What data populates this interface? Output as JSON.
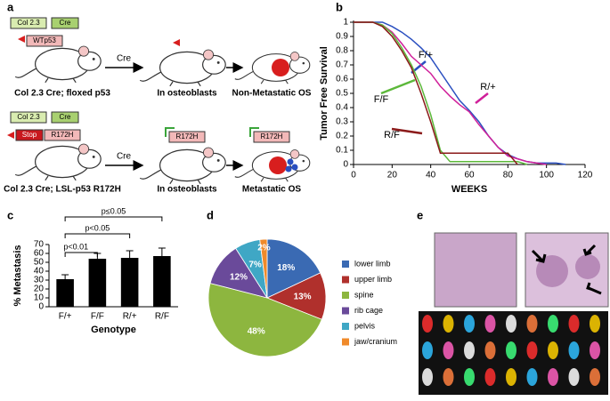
{
  "diagram": {
    "panel": "a",
    "rows": [
      {
        "genes": [
          "Col 2.3",
          "Cre",
          "WTp53"
        ],
        "cre": "Cre",
        "labels": [
          "Col 2.3 Cre; floxed p53",
          "In osteoblasts",
          "Non-Metastatic OS"
        ]
      },
      {
        "genes": [
          "Col 2.3",
          "Cre",
          "Stop",
          "R172H"
        ],
        "cre": "Cre",
        "middle": "R172H",
        "right": "R172H",
        "labels": [
          "Col 2.3 Cre; LSL-p53 R172H",
          "In osteoblasts",
          "Metastatic OS"
        ]
      }
    ]
  },
  "chart_data": [
    {
      "type": "line",
      "panel": "b",
      "y_label": "Tumor Free Survival",
      "x_label": "WEEKS",
      "x": [
        0,
        10,
        15,
        20,
        25,
        30,
        35,
        40,
        45,
        50,
        55,
        60,
        65,
        70,
        75,
        80,
        85,
        90,
        95,
        100,
        105,
        110
      ],
      "series": [
        {
          "name": "F/+",
          "color": "#2a4fc0",
          "values": [
            1,
            1,
            1,
            0.97,
            0.93,
            0.88,
            0.82,
            0.75,
            0.65,
            0.55,
            0.45,
            0.38,
            0.3,
            0.2,
            0.12,
            0.07,
            0.04,
            0.02,
            0.01,
            0.01,
            0.01,
            0
          ]
        },
        {
          "name": "R/+",
          "color": "#d0209a",
          "values": [
            1,
            1,
            0.98,
            0.93,
            0.85,
            0.76,
            0.7,
            0.64,
            0.55,
            0.48,
            0.42,
            0.37,
            0.28,
            0.2,
            0.12,
            0.06,
            0.04,
            0.02,
            0.01,
            0,
            null,
            null
          ]
        },
        {
          "name": "F/F",
          "color": "#5cb83a",
          "values": [
            1,
            1,
            0.98,
            0.92,
            0.82,
            0.7,
            0.55,
            0.35,
            0.1,
            0.02,
            0.02,
            0.02,
            0.02,
            0.02,
            0.02,
            0.02,
            0.02,
            0,
            null,
            null,
            null,
            null
          ]
        },
        {
          "name": "R/F",
          "color": "#8b1a1a",
          "values": [
            1,
            1,
            0.97,
            0.9,
            0.8,
            0.68,
            0.5,
            0.3,
            0.08,
            0.08,
            0.08,
            0.08,
            0.08,
            0.08,
            0.08,
            0.08,
            0,
            null,
            null,
            null,
            null,
            null
          ]
        }
      ],
      "xlim": [
        0,
        120
      ],
      "xticks": [
        0,
        20,
        40,
        60,
        80,
        100,
        120
      ],
      "ylim": [
        0,
        1
      ],
      "yticks": [
        0,
        0.1,
        0.2,
        0.3,
        0.4,
        0.5,
        0.6,
        0.7,
        0.8,
        0.9,
        1
      ]
    },
    {
      "type": "bar",
      "panel": "c",
      "y_label": "% Metastasis",
      "x_label": "Genotype",
      "categories": [
        "F/+",
        "F/F",
        "R/+",
        "R/F"
      ],
      "values": [
        31,
        54,
        55,
        57
      ],
      "errors": [
        5,
        6,
        8,
        9
      ],
      "color": "#000000",
      "ylim": [
        0,
        70
      ],
      "yticks": [
        0,
        10,
        20,
        30,
        40,
        50,
        60,
        70
      ],
      "annotations": [
        "p≤0.05",
        "p<0.05",
        "p<0.01"
      ]
    },
    {
      "type": "pie",
      "panel": "d",
      "categories": [
        "lower limb",
        "upper limb",
        "spine",
        "rib cage",
        "pelvis",
        "jaw/cranium"
      ],
      "values": [
        18,
        13,
        48,
        12,
        7,
        2
      ],
      "value_labels": [
        "18%",
        "13%",
        "48%",
        "12%",
        "7%",
        "2%"
      ],
      "colors": [
        "#3a6ab3",
        "#b0302c",
        "#8db63f",
        "#6a4a9a",
        "#3fa7c5",
        "#f08a2a"
      ]
    }
  ],
  "images": {
    "panel": "e"
  }
}
